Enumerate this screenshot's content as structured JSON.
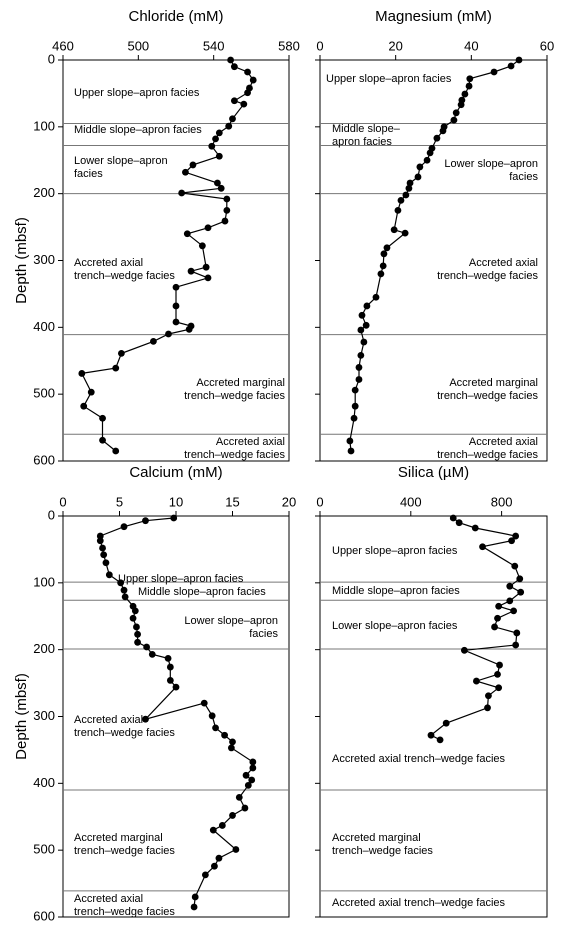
{
  "chart_data": [
    {
      "type": "line",
      "title": "Chloride (mM)",
      "ylabel": "Depth (mbsf)",
      "xlim": [
        460,
        580
      ],
      "xticks": [
        460,
        500,
        540,
        580
      ],
      "ylim": [
        0,
        600
      ],
      "yticks": [
        0,
        100,
        200,
        300,
        400,
        500,
        600
      ],
      "y_inverted": true,
      "color": "#000000",
      "boundaries": [
        95,
        128,
        200,
        411,
        560
      ],
      "x": [
        549,
        551,
        558,
        561,
        559,
        558,
        551,
        556,
        550,
        548,
        543,
        541,
        539,
        543,
        529,
        525,
        542,
        544,
        523,
        547,
        547,
        546,
        537,
        526,
        534,
        536,
        528,
        537,
        520,
        520,
        520,
        528,
        527,
        516,
        508,
        491,
        488,
        470,
        475,
        471,
        481,
        481,
        488
      ],
      "y": [
        0,
        10,
        18,
        30,
        42,
        49,
        61,
        66,
        88,
        99,
        109,
        118,
        129,
        144,
        157,
        168,
        184,
        192,
        199,
        208,
        225,
        241,
        251,
        260,
        278,
        310,
        316,
        326,
        340,
        368,
        392,
        398,
        403,
        410,
        421,
        439,
        461,
        469,
        497,
        518,
        536,
        569,
        585
      ],
      "annotations": [
        [
          "Upper slope–apron facies"
        ],
        [
          "Middle slope–apron facies"
        ],
        [
          "Lower slope–apron",
          "facies"
        ],
        [
          "Accreted axial",
          "trench–wedge facies"
        ],
        [
          "Accreted marginal",
          "trench–wedge facies"
        ],
        [
          "Accreted axial",
          "trench–wedge facies"
        ]
      ]
    },
    {
      "type": "line",
      "title": "Magnesium (mM)",
      "xlim": [
        0,
        60
      ],
      "xticks": [
        0,
        20,
        40,
        60
      ],
      "ylim": [
        0,
        600
      ],
      "yticks": [
        0,
        100,
        200,
        300,
        400,
        500,
        600
      ],
      "y_inverted": true,
      "color": "#000000",
      "boundaries": [
        95,
        128,
        200,
        411,
        560
      ],
      "x": [
        52.6,
        50.5,
        46,
        39.6,
        39.4,
        38.3,
        37.5,
        37.3,
        36,
        35.4,
        32.8,
        32.5,
        30.9,
        29.6,
        29.1,
        28.3,
        26.4,
        25.9,
        23.8,
        23.5,
        22.7,
        21.4,
        20.6,
        19.6,
        22.5,
        17.7,
        16.9,
        16.7,
        16.1,
        14.8,
        12.4,
        11.1,
        12.2,
        10.8,
        11.6,
        10.8,
        10.3,
        10.3,
        9.3,
        9.3,
        9.0,
        7.9,
        8.2
      ],
      "y": [
        0,
        9,
        18,
        28,
        39,
        51,
        60,
        67,
        79,
        90,
        100,
        106,
        117,
        132,
        139,
        150,
        160,
        175,
        184,
        192,
        202,
        210,
        225,
        254,
        259,
        281,
        290,
        308,
        320,
        355,
        368,
        382,
        397,
        404,
        422,
        442,
        460,
        478,
        494,
        518,
        536,
        570,
        585
      ],
      "annotations": [
        [
          "Upper slope–apron facies"
        ],
        [
          "Middle slope–",
          "apron facies"
        ],
        [
          "Lower slope–apron",
          "facies"
        ],
        [
          "Accreted axial",
          "trench–wedge facies"
        ],
        [
          "Accreted marginal",
          "trench–wedge facies"
        ],
        [
          "Accreted axial",
          "trench–wedge facies"
        ]
      ]
    },
    {
      "type": "line",
      "title": "Calcium (mM)",
      "ylabel": "Depth (mbsf)",
      "xlim": [
        0,
        20
      ],
      "xticks": [
        0,
        5,
        10,
        15,
        20
      ],
      "ylim": [
        0,
        600
      ],
      "yticks": [
        0,
        100,
        200,
        300,
        400,
        500,
        600
      ],
      "y_inverted": true,
      "color": "#000000",
      "boundaries": [
        99,
        126,
        199,
        410,
        561
      ],
      "x": [
        9.8,
        7.3,
        5.4,
        3.3,
        3.3,
        3.5,
        3.6,
        3.8,
        4.1,
        5.1,
        5.4,
        5.5,
        6.2,
        6.4,
        6.2,
        6.5,
        6.6,
        6.6,
        7.4,
        7.9,
        9.3,
        9.5,
        9.5,
        10.0,
        7.3,
        12.5,
        13.2,
        13.5,
        14.3,
        15.0,
        14.9,
        16.8,
        16.8,
        16.2,
        16.7,
        16.4,
        15.6,
        16.1,
        15.0,
        14.1,
        13.3,
        15.3,
        13.8,
        13.4,
        12.6,
        11.7,
        11.6
      ],
      "y": [
        3,
        7,
        16,
        30,
        37,
        48,
        58,
        70,
        88,
        100,
        111,
        121,
        135,
        142,
        153,
        166,
        177,
        189,
        196,
        207,
        213,
        226,
        246,
        256,
        304,
        280,
        299,
        317,
        328,
        338,
        347,
        368,
        377,
        388,
        395,
        403,
        421,
        437,
        448,
        463,
        470,
        499,
        512,
        524,
        537,
        570,
        585
      ],
      "annotations": [
        [
          "Upper slope–apron facies"
        ],
        [
          "Middle slope–apron facies"
        ],
        [
          "Lower slope–apron",
          "facies"
        ],
        [
          "Accreted axial",
          "trench–wedge facies"
        ],
        [
          "Accreted marginal",
          "trench–wedge facies"
        ],
        [
          "Accreted axial",
          "trench–wedge facies"
        ]
      ]
    },
    {
      "type": "line",
      "title": "Silica (µM)",
      "xlim": [
        0,
        1000
      ],
      "xticks": [
        0,
        400,
        800
      ],
      "ylim": [
        0,
        600
      ],
      "yticks": [
        0,
        100,
        200,
        300,
        400,
        500,
        600
      ],
      "y_inverted": true,
      "color": "#000000",
      "boundaries": [
        99,
        126,
        199,
        410,
        561
      ],
      "x": [
        587,
        613,
        684,
        862,
        844,
        716,
        858,
        880,
        836,
        884,
        836,
        787,
        853,
        782,
        769,
        867,
        862,
        636,
        791,
        782,
        689,
        787,
        742,
        738,
        556,
        489,
        529
      ],
      "y": [
        3,
        10,
        18,
        30,
        37,
        46,
        75,
        94,
        105,
        114,
        127,
        135,
        142,
        153,
        166,
        175,
        193,
        201,
        223,
        237,
        247,
        257,
        269,
        287,
        310,
        328,
        335
      ],
      "annotations": [
        [
          "Upper slope–apron facies"
        ],
        [
          "Middle slope–apron facies"
        ],
        [
          "Lower slope–apron facies"
        ],
        [
          "Accreted axial trench–wedge facies"
        ],
        [
          "Accreted marginal",
          "trench–wedge facies"
        ],
        [
          "Accreted axial trench–wedge facies"
        ]
      ]
    }
  ]
}
